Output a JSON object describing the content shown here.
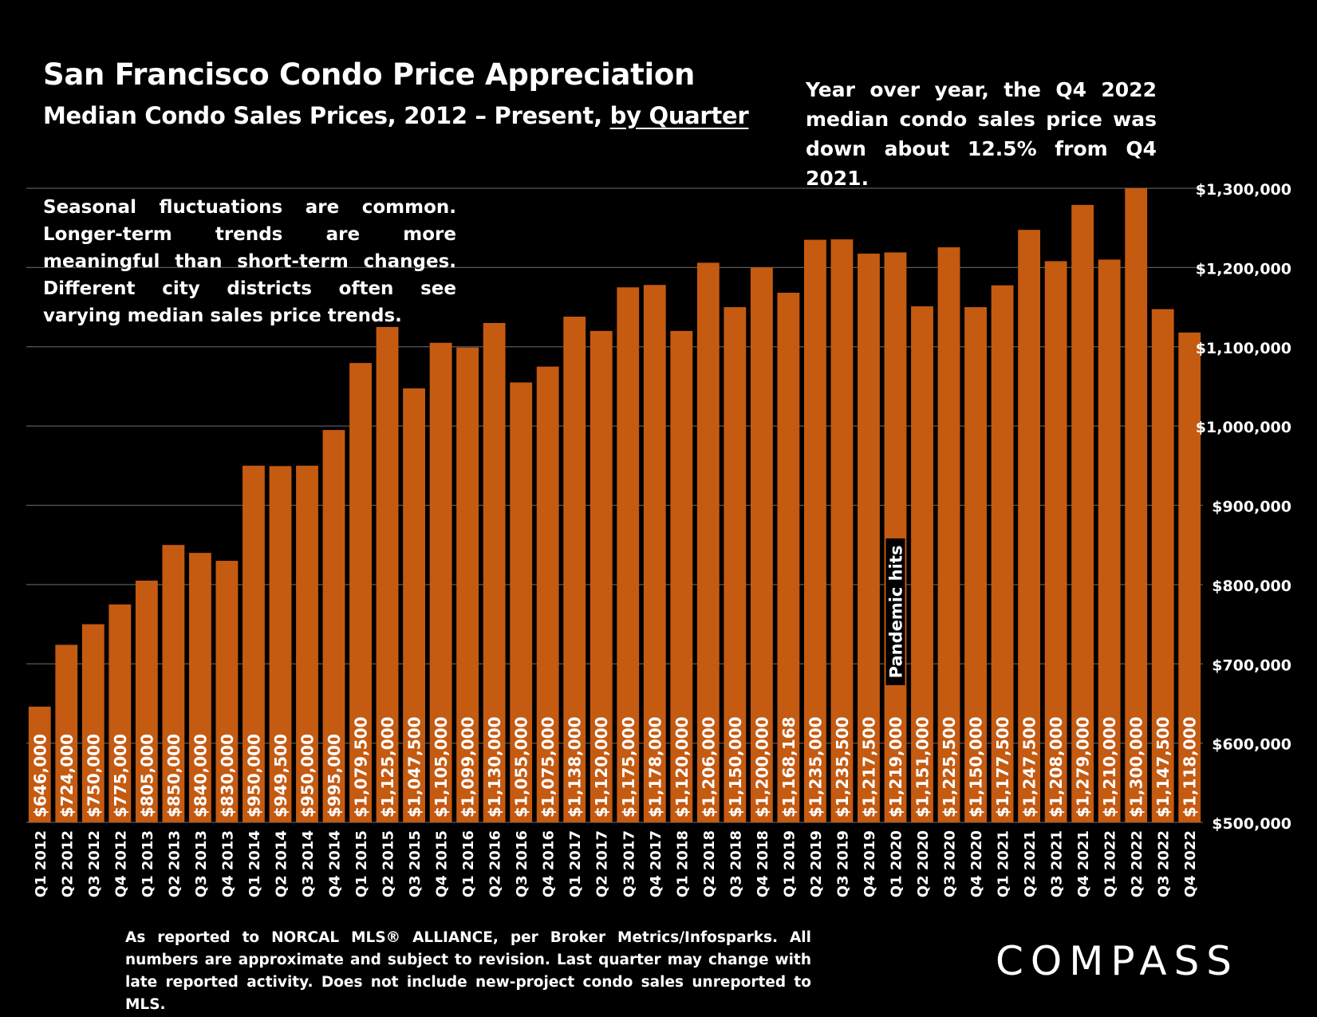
{
  "header": {
    "title": "San Francisco Condo Price Appreciation",
    "subtitle_prefix": "Median Condo Sales Prices, 2012 – Present, ",
    "subtitle_underlined": "by Quarter"
  },
  "notes": {
    "yoy": "Year over year, the Q4 2022 median condo sales price was down about 12.5% from Q4 2021.",
    "seasonal": "Seasonal fluctuations are common. Longer-term trends are more meaningful than short-term changes. Different city districts often see varying median sales price trends."
  },
  "footnote": "As reported to NORCAL MLS® ALLIANCE, per Broker Metrics/Infosparks. All numbers are approximate and subject to revision. Last quarter may change with late reported activity. Does not include new-project condo sales unreported to MLS.",
  "brand": {
    "logo_text": "COMPASS"
  },
  "colors": {
    "bar": "#C55A11",
    "grid": "#595959",
    "background": "#000000",
    "text": "#FFFFFF"
  },
  "chart_data": {
    "type": "bar",
    "categories": [
      "Q1 2012",
      "Q2 2012",
      "Q3 2012",
      "Q4 2012",
      "Q1 2013",
      "Q2 2013",
      "Q3 2013",
      "Q4 2013",
      "Q1 2014",
      "Q2 2014",
      "Q3 2014",
      "Q4 2014",
      "Q1 2015",
      "Q2 2015",
      "Q3 2015",
      "Q4 2015",
      "Q1 2016",
      "Q2 2016",
      "Q3 2016",
      "Q4 2016",
      "Q1 2017",
      "Q2 2017",
      "Q3 2017",
      "Q4 2017",
      "Q1 2018",
      "Q2 2018",
      "Q3 2018",
      "Q4 2018",
      "Q1 2019",
      "Q2 2019",
      "Q3 2019",
      "Q4 2019",
      "Q1 2020",
      "Q2 2020",
      "Q3 2020",
      "Q4 2020",
      "Q1 2021",
      "Q2 2021",
      "Q3 2021",
      "Q4 2021",
      "Q1 2022",
      "Q2 2022",
      "Q3 2022",
      "Q4 2022"
    ],
    "values": [
      646000,
      724000,
      750000,
      775000,
      805000,
      850000,
      840000,
      830000,
      950000,
      949500,
      950000,
      995000,
      1079500,
      1125000,
      1047500,
      1105000,
      1099000,
      1130000,
      1055000,
      1075000,
      1138000,
      1120000,
      1175000,
      1178000,
      1120000,
      1206000,
      1150000,
      1200000,
      1168168,
      1235000,
      1235500,
      1217500,
      1219000,
      1151000,
      1225500,
      1150000,
      1177500,
      1247500,
      1208000,
      1279000,
      1210000,
      1300000,
      1147500,
      1118000
    ],
    "data_labels": [
      "$646,000",
      "$724,000",
      "$750,000",
      "$775,000",
      "$805,000",
      "$850,000",
      "$840,000",
      "$830,000",
      "$950,000",
      "$949,500",
      "$950,000",
      "$995,000",
      "$1,079,500",
      "$1,125,000",
      "$1,047,500",
      "$1,105,000",
      "$1,099,000",
      "$1,130,000",
      "$1,055,000",
      "$1,075,000",
      "$1,138,000",
      "$1,120,000",
      "$1,175,000",
      "$1,178,000",
      "$1,120,000",
      "$1,206,000",
      "$1,150,000",
      "$1,200,000",
      "$1,168,168",
      "$1,235,000",
      "$1,235,500",
      "$1,217,500",
      "$1,219,000",
      "$1,151,000",
      "$1,225,500",
      "$1,150,000",
      "$1,177,500",
      "$1,247,500",
      "$1,208,000",
      "$1,279,000",
      "$1,210,000",
      "$1,300,000",
      "$1,147,500",
      "$1,118,000"
    ],
    "ylim": [
      500000,
      1300000
    ],
    "y_ticks": [
      500000,
      600000,
      700000,
      800000,
      900000,
      1000000,
      1100000,
      1200000,
      1300000
    ],
    "y_tick_labels": [
      "$500,000",
      "$600,000",
      "$700,000",
      "$800,000",
      "$900,000",
      "$1,000,000",
      "$1,100,000",
      "$1,200,000",
      "$1,300,000"
    ],
    "y_axis_side": "right",
    "grid": true,
    "annotations": [
      {
        "text": "Pandemic hits",
        "category": "Q1 2020"
      }
    ]
  }
}
